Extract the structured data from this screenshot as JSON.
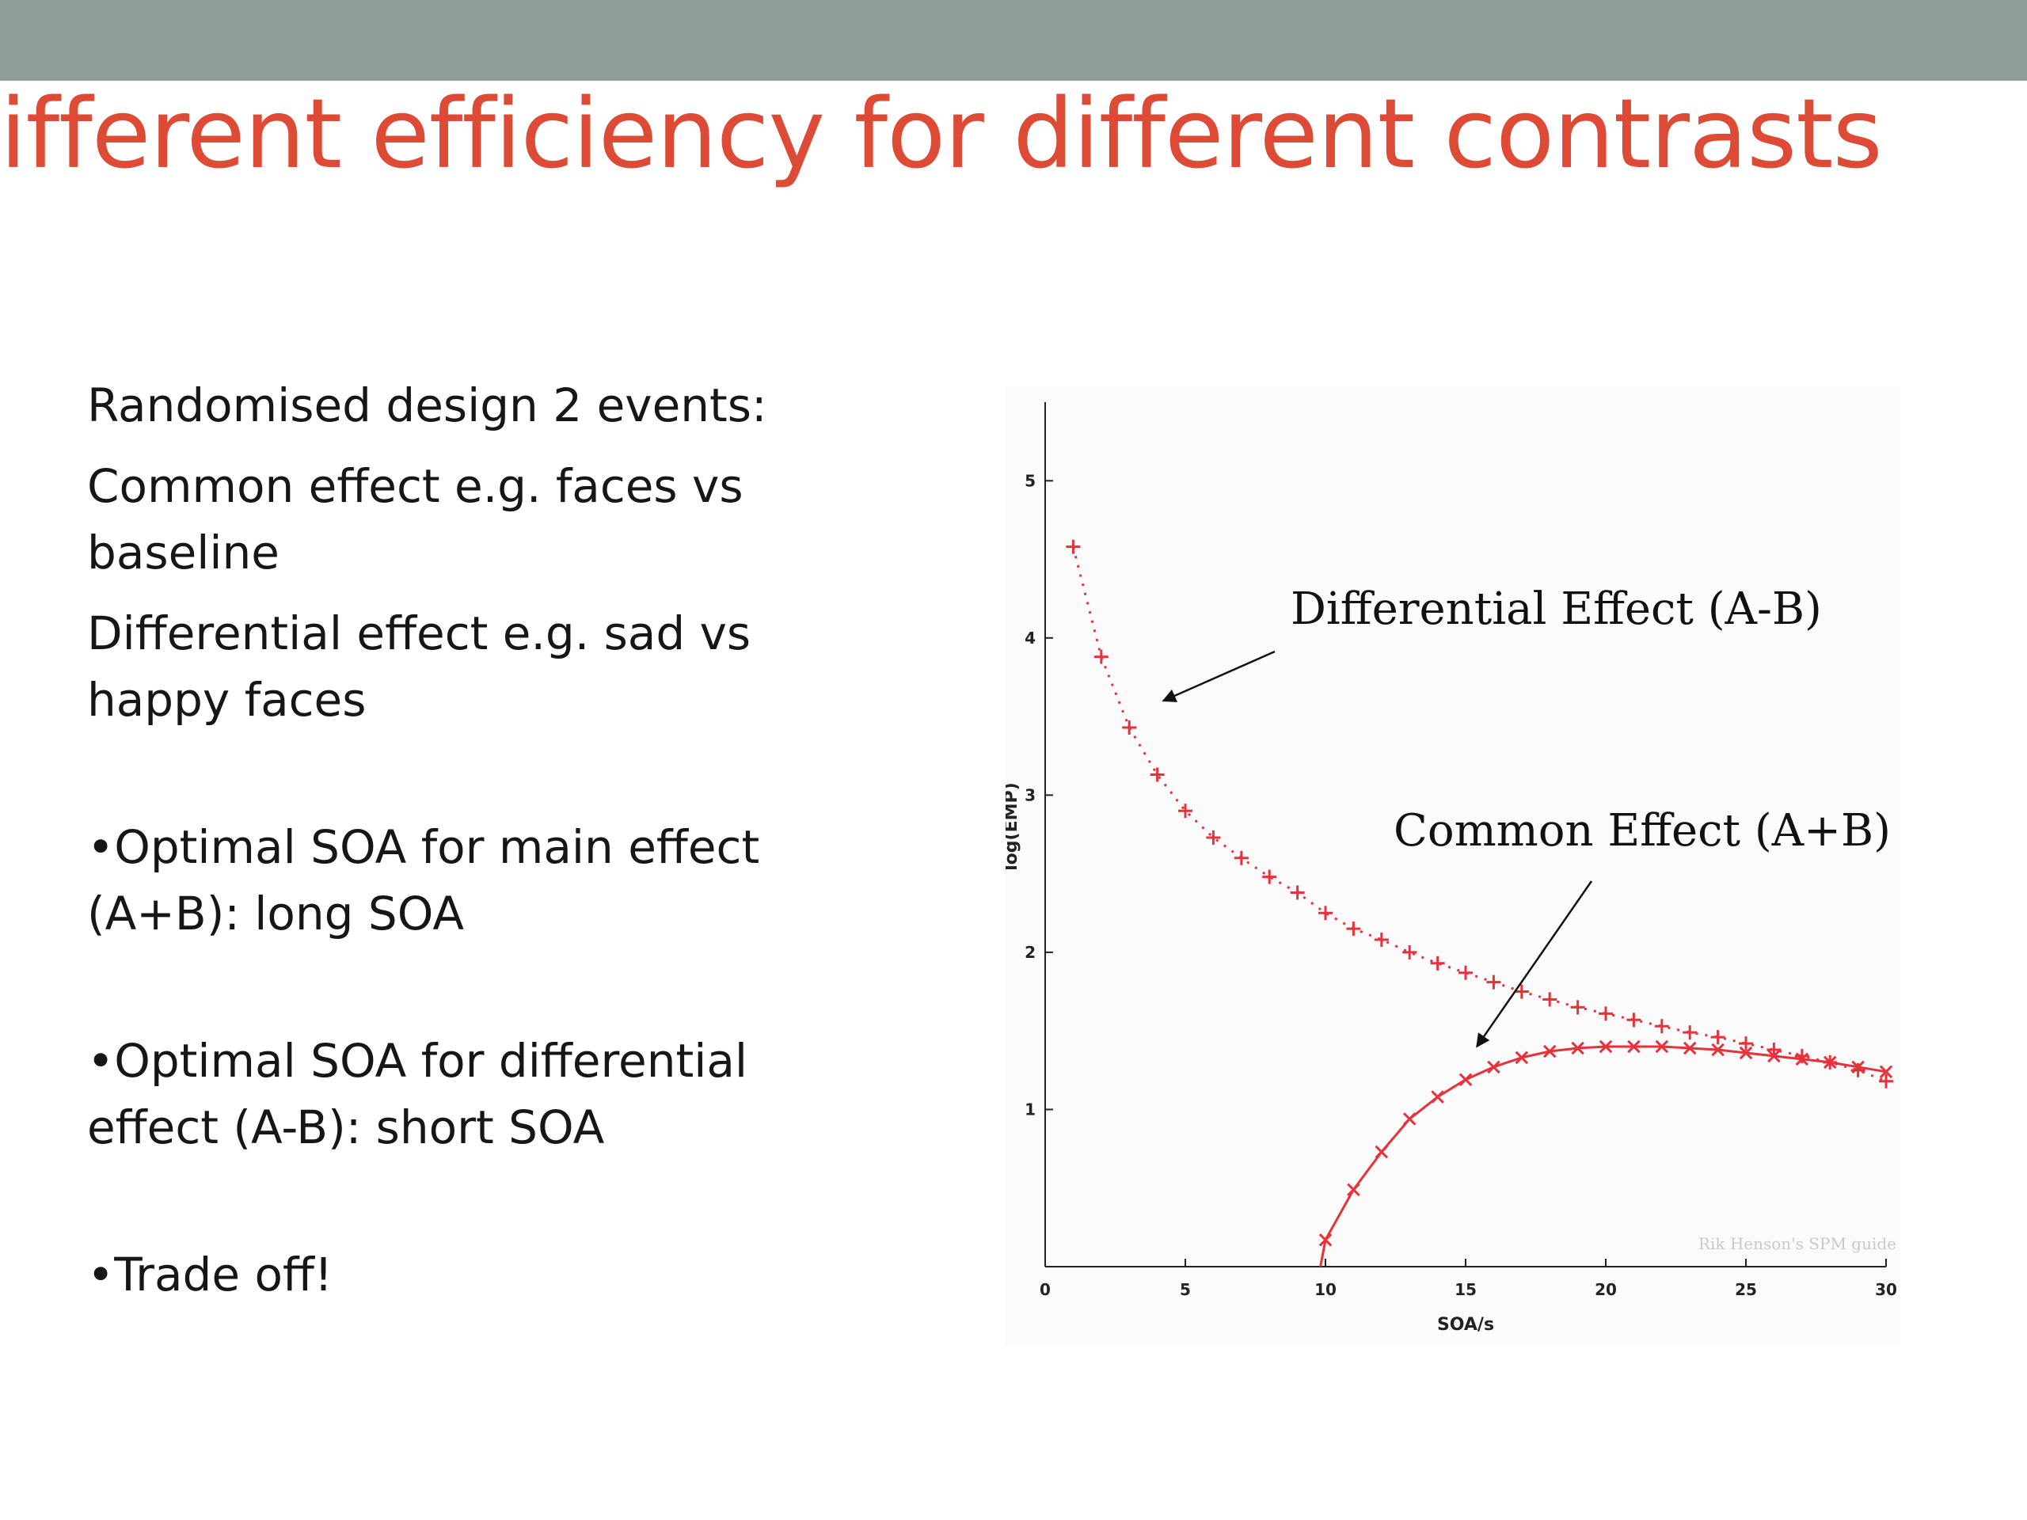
{
  "slide": {
    "title": "ifferent efficiency for different contrasts",
    "bullets": [
      "Randomised design 2 events:",
      "Common effect e.g. faces vs",
      "baseline",
      "Differential effect e.g. sad vs",
      "happy faces",
      "•Optimal SOA for main effect",
      "(A+B): long SOA",
      "•Optimal SOA for differential",
      "effect (A-B): short SOA",
      "•Trade off!"
    ]
  },
  "colors": {
    "title": "#dd4a35",
    "top_bar": "#909e97",
    "series": "#e8323b",
    "text": "#161616"
  },
  "chart_data": {
    "type": "line",
    "xlabel": "SOA/s",
    "ylabel": "log(EMP)",
    "xlim": [
      0,
      30
    ],
    "ylim": [
      0,
      5.5
    ],
    "xticks": [
      0,
      5,
      10,
      15,
      20,
      25,
      30
    ],
    "yticks": [
      1,
      2,
      3,
      4,
      5
    ],
    "x": [
      1,
      2,
      3,
      4,
      5,
      6,
      7,
      8,
      9,
      10,
      11,
      12,
      13,
      14,
      15,
      16,
      17,
      18,
      19,
      20,
      21,
      22,
      23,
      24,
      25,
      26,
      27,
      28,
      29,
      30
    ],
    "series": [
      {
        "name": "Differential Effect (A-B)",
        "marker": "+",
        "line": "dotted",
        "values": [
          4.58,
          3.88,
          3.43,
          3.13,
          2.9,
          2.73,
          2.6,
          2.48,
          2.38,
          2.25,
          2.15,
          2.08,
          2.0,
          1.93,
          1.87,
          1.81,
          1.75,
          1.7,
          1.65,
          1.61,
          1.57,
          1.53,
          1.49,
          1.46,
          1.42,
          1.38,
          1.34,
          1.3,
          1.25,
          1.18
        ]
      },
      {
        "name": "Common Effect (A+B)",
        "marker": "x",
        "line": "solid",
        "x": [
          10,
          11,
          12,
          13,
          14,
          15,
          16,
          17,
          18,
          19,
          20,
          21,
          22,
          23,
          24,
          25,
          26,
          27,
          28,
          29,
          30
        ],
        "values": [
          0.17,
          0.49,
          0.73,
          0.94,
          1.08,
          1.19,
          1.27,
          1.33,
          1.37,
          1.39,
          1.4,
          1.4,
          1.4,
          1.39,
          1.38,
          1.36,
          1.34,
          1.32,
          1.3,
          1.27,
          1.24
        ]
      }
    ],
    "annotations": [
      {
        "text": "Differential Effect (A-B)",
        "series": 0
      },
      {
        "text": "Common Effect (A+B)",
        "series": 1
      }
    ],
    "credit": "Rik Henson's SPM guide"
  }
}
